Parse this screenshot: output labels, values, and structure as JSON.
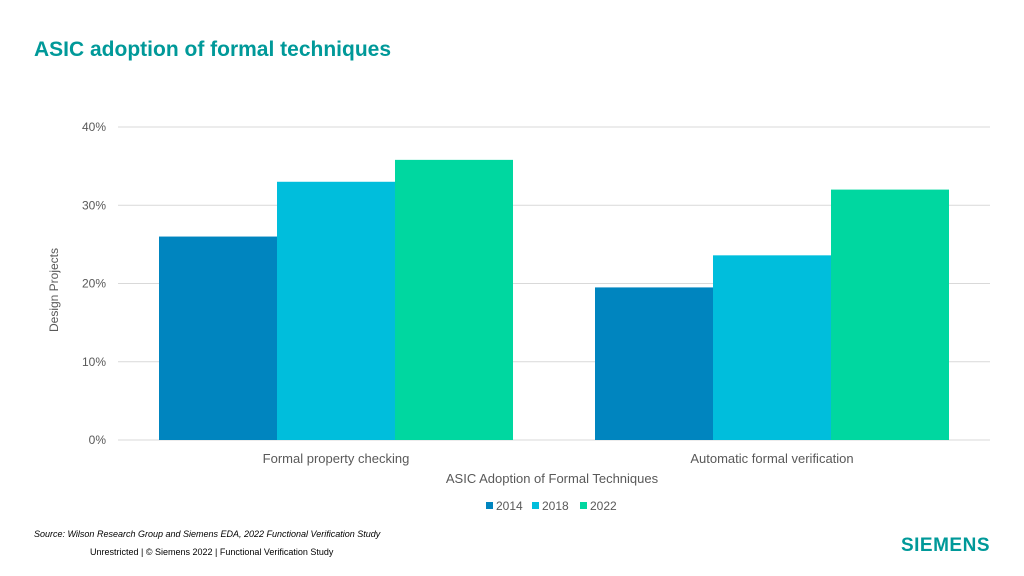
{
  "slide": {
    "title": "ASIC adoption of formal techniques",
    "source": "Source:  Wilson Research Group and Siemens EDA, 2022 Functional Verification Study",
    "footer": "Unrestricted | © Siemens 2022 |  Functional Verification Study",
    "logo": "SIEMENS"
  },
  "colors": {
    "accent": "#009999",
    "s2014": "#0085BF",
    "s2018": "#00BEDC",
    "s2022": "#00D7A0"
  },
  "chart_data": {
    "type": "bar",
    "title": "",
    "xlabel": "ASIC Adoption of Formal Techniques",
    "ylabel": "Design Projects",
    "categories": [
      "Formal property checking",
      "Automatic formal verification"
    ],
    "series": [
      {
        "name": "2014",
        "values": [
          26,
          19.5
        ],
        "color": "#0085BF"
      },
      {
        "name": "2018",
        "values": [
          33,
          23.6
        ],
        "color": "#00BEDC"
      },
      {
        "name": "2022",
        "values": [
          35.8,
          32
        ],
        "color": "#00D7A0"
      }
    ],
    "ylim": [
      0,
      40
    ],
    "yticks": [
      0,
      10,
      20,
      30,
      40
    ],
    "ytick_labels": [
      "0%",
      "10%",
      "20%",
      "30%",
      "40%"
    ],
    "grid": true,
    "legend_position": "bottom"
  }
}
